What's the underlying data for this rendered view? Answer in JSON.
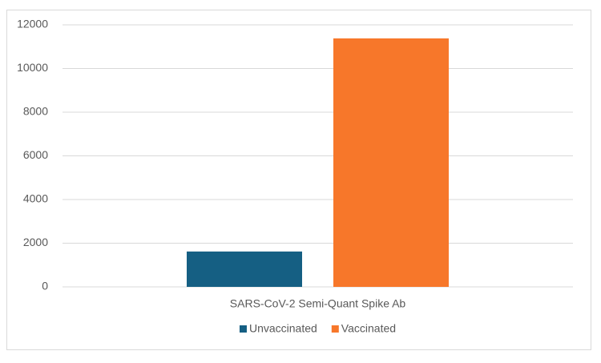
{
  "chart_data": {
    "type": "bar",
    "categories": [
      "SARS-CoV-2 Semi-Quant Spike Ab"
    ],
    "series": [
      {
        "name": "Unvaccinated",
        "color": "#155f83",
        "values": [
          1620
        ]
      },
      {
        "name": "Vaccinated",
        "color": "#f7772a",
        "values": [
          11380
        ]
      }
    ],
    "ylim": [
      0,
      12000
    ],
    "yticks": [
      0,
      2000,
      4000,
      6000,
      8000,
      10000,
      12000
    ],
    "grid": true,
    "legend": "bottom"
  }
}
